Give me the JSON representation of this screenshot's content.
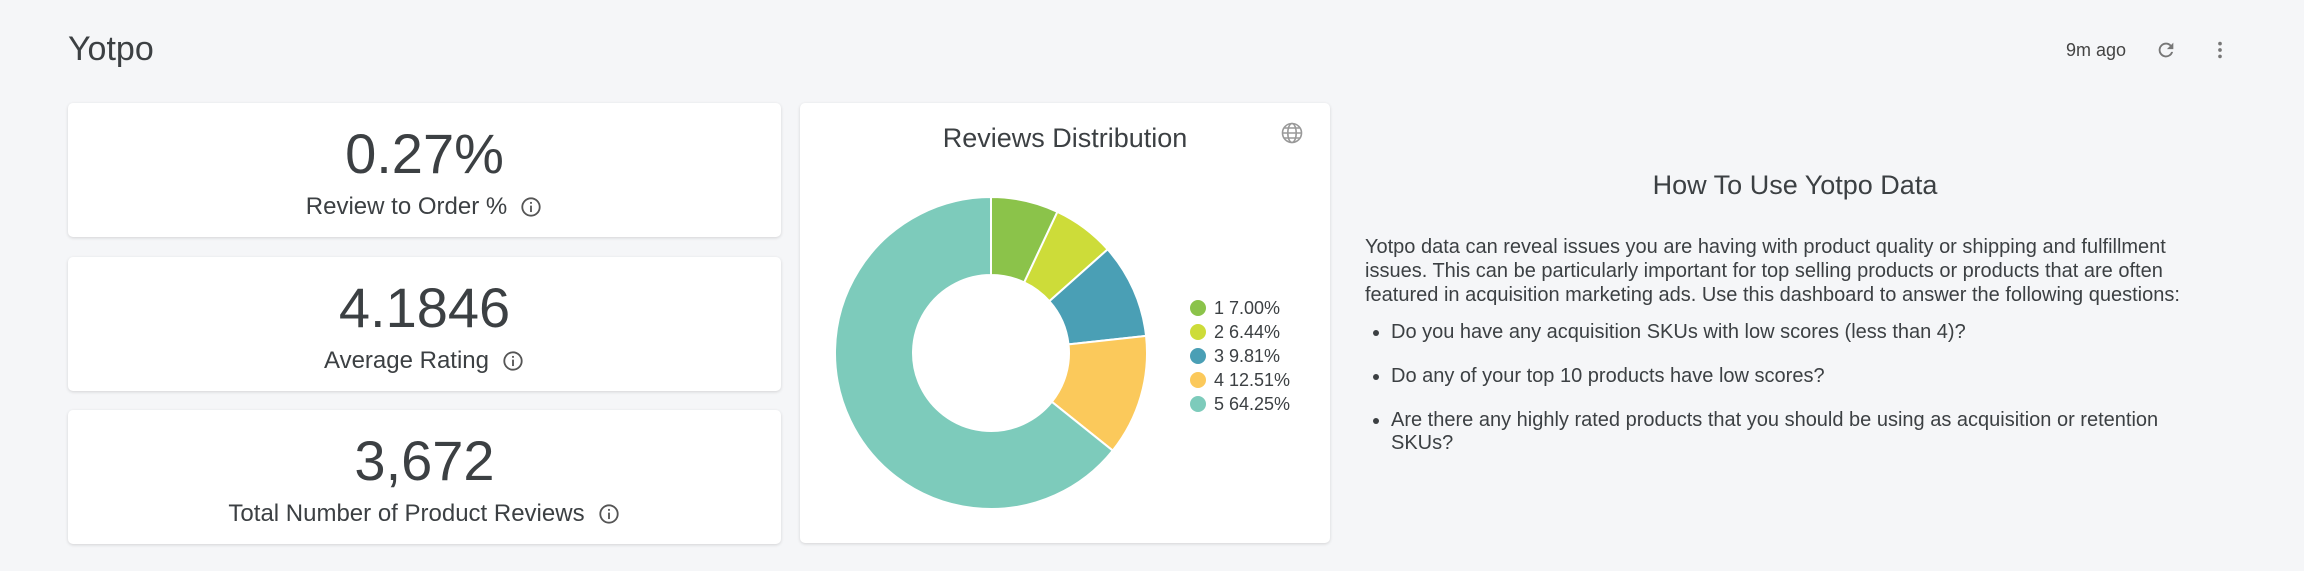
{
  "dashboard": {
    "title": "Yotpo",
    "updated": "9m ago"
  },
  "kpis": [
    {
      "value": "0.27%",
      "label": "Review to Order %"
    },
    {
      "value": "4.1846",
      "label": "Average Rating"
    },
    {
      "value": "3,672",
      "label": "Total Number of Product Reviews"
    }
  ],
  "chart_data": {
    "type": "pie",
    "title": "Reviews Distribution",
    "categories": [
      "1",
      "2",
      "3",
      "4",
      "5"
    ],
    "values": [
      7.0,
      6.44,
      9.81,
      12.51,
      64.25
    ],
    "labels": [
      "1 7.00%",
      "2 6.44%",
      "3 9.81%",
      "4 12.51%",
      "5 64.25%"
    ],
    "colors": [
      "#8bc34a",
      "#cddc39",
      "#4a9fb5",
      "#fbc95b",
      "#7dcbbb"
    ],
    "legend": "right"
  },
  "howto": {
    "title": "How To Use Yotpo Data",
    "intro": "Yotpo data can reveal issues you are having with product quality or shipping and fulfillment issues. This can be particularly important for top selling products or products that are often featured in acquisition marketing ads. Use this dashboard to answer the following questions:",
    "questions": [
      "Do you have any acquisition SKUs with low scores (less than 4)?",
      "Do any of your top 10 products have low scores?",
      "Are there any highly rated products that you should be using as acquisition or retention SKUs?"
    ]
  },
  "icons": {
    "refresh": "refresh-icon",
    "more": "more-vert-icon",
    "info": "info-icon",
    "globe": "globe-icon"
  }
}
